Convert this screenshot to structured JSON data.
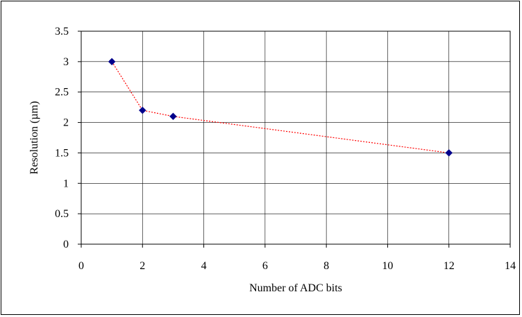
{
  "chart_data": {
    "type": "line",
    "title": "",
    "xlabel": "Number of ADC bits",
    "ylabel": "Resolution (µm)",
    "xlim": [
      0,
      14
    ],
    "ylim": [
      0,
      3.5
    ],
    "xticks": [
      0,
      2,
      4,
      6,
      8,
      10,
      12,
      14
    ],
    "yticks": [
      0,
      0.5,
      1,
      1.5,
      2,
      2.5,
      3,
      3.5
    ],
    "xtick_labels": [
      "0",
      "2",
      "4",
      "6",
      "8",
      "10",
      "12",
      "14"
    ],
    "ytick_labels": [
      "0",
      "0.5",
      "1",
      "1.5",
      "2",
      "2.5",
      "3",
      "3.5"
    ],
    "grid": true,
    "legend": "none",
    "series": [
      {
        "x": [
          1,
          2,
          3,
          12
        ],
        "y": [
          3.0,
          2.2,
          2.1,
          1.5
        ],
        "marker": "diamond",
        "marker_color": "#00008B",
        "line_style": "dotted",
        "line_color": "#FF0000"
      }
    ]
  }
}
